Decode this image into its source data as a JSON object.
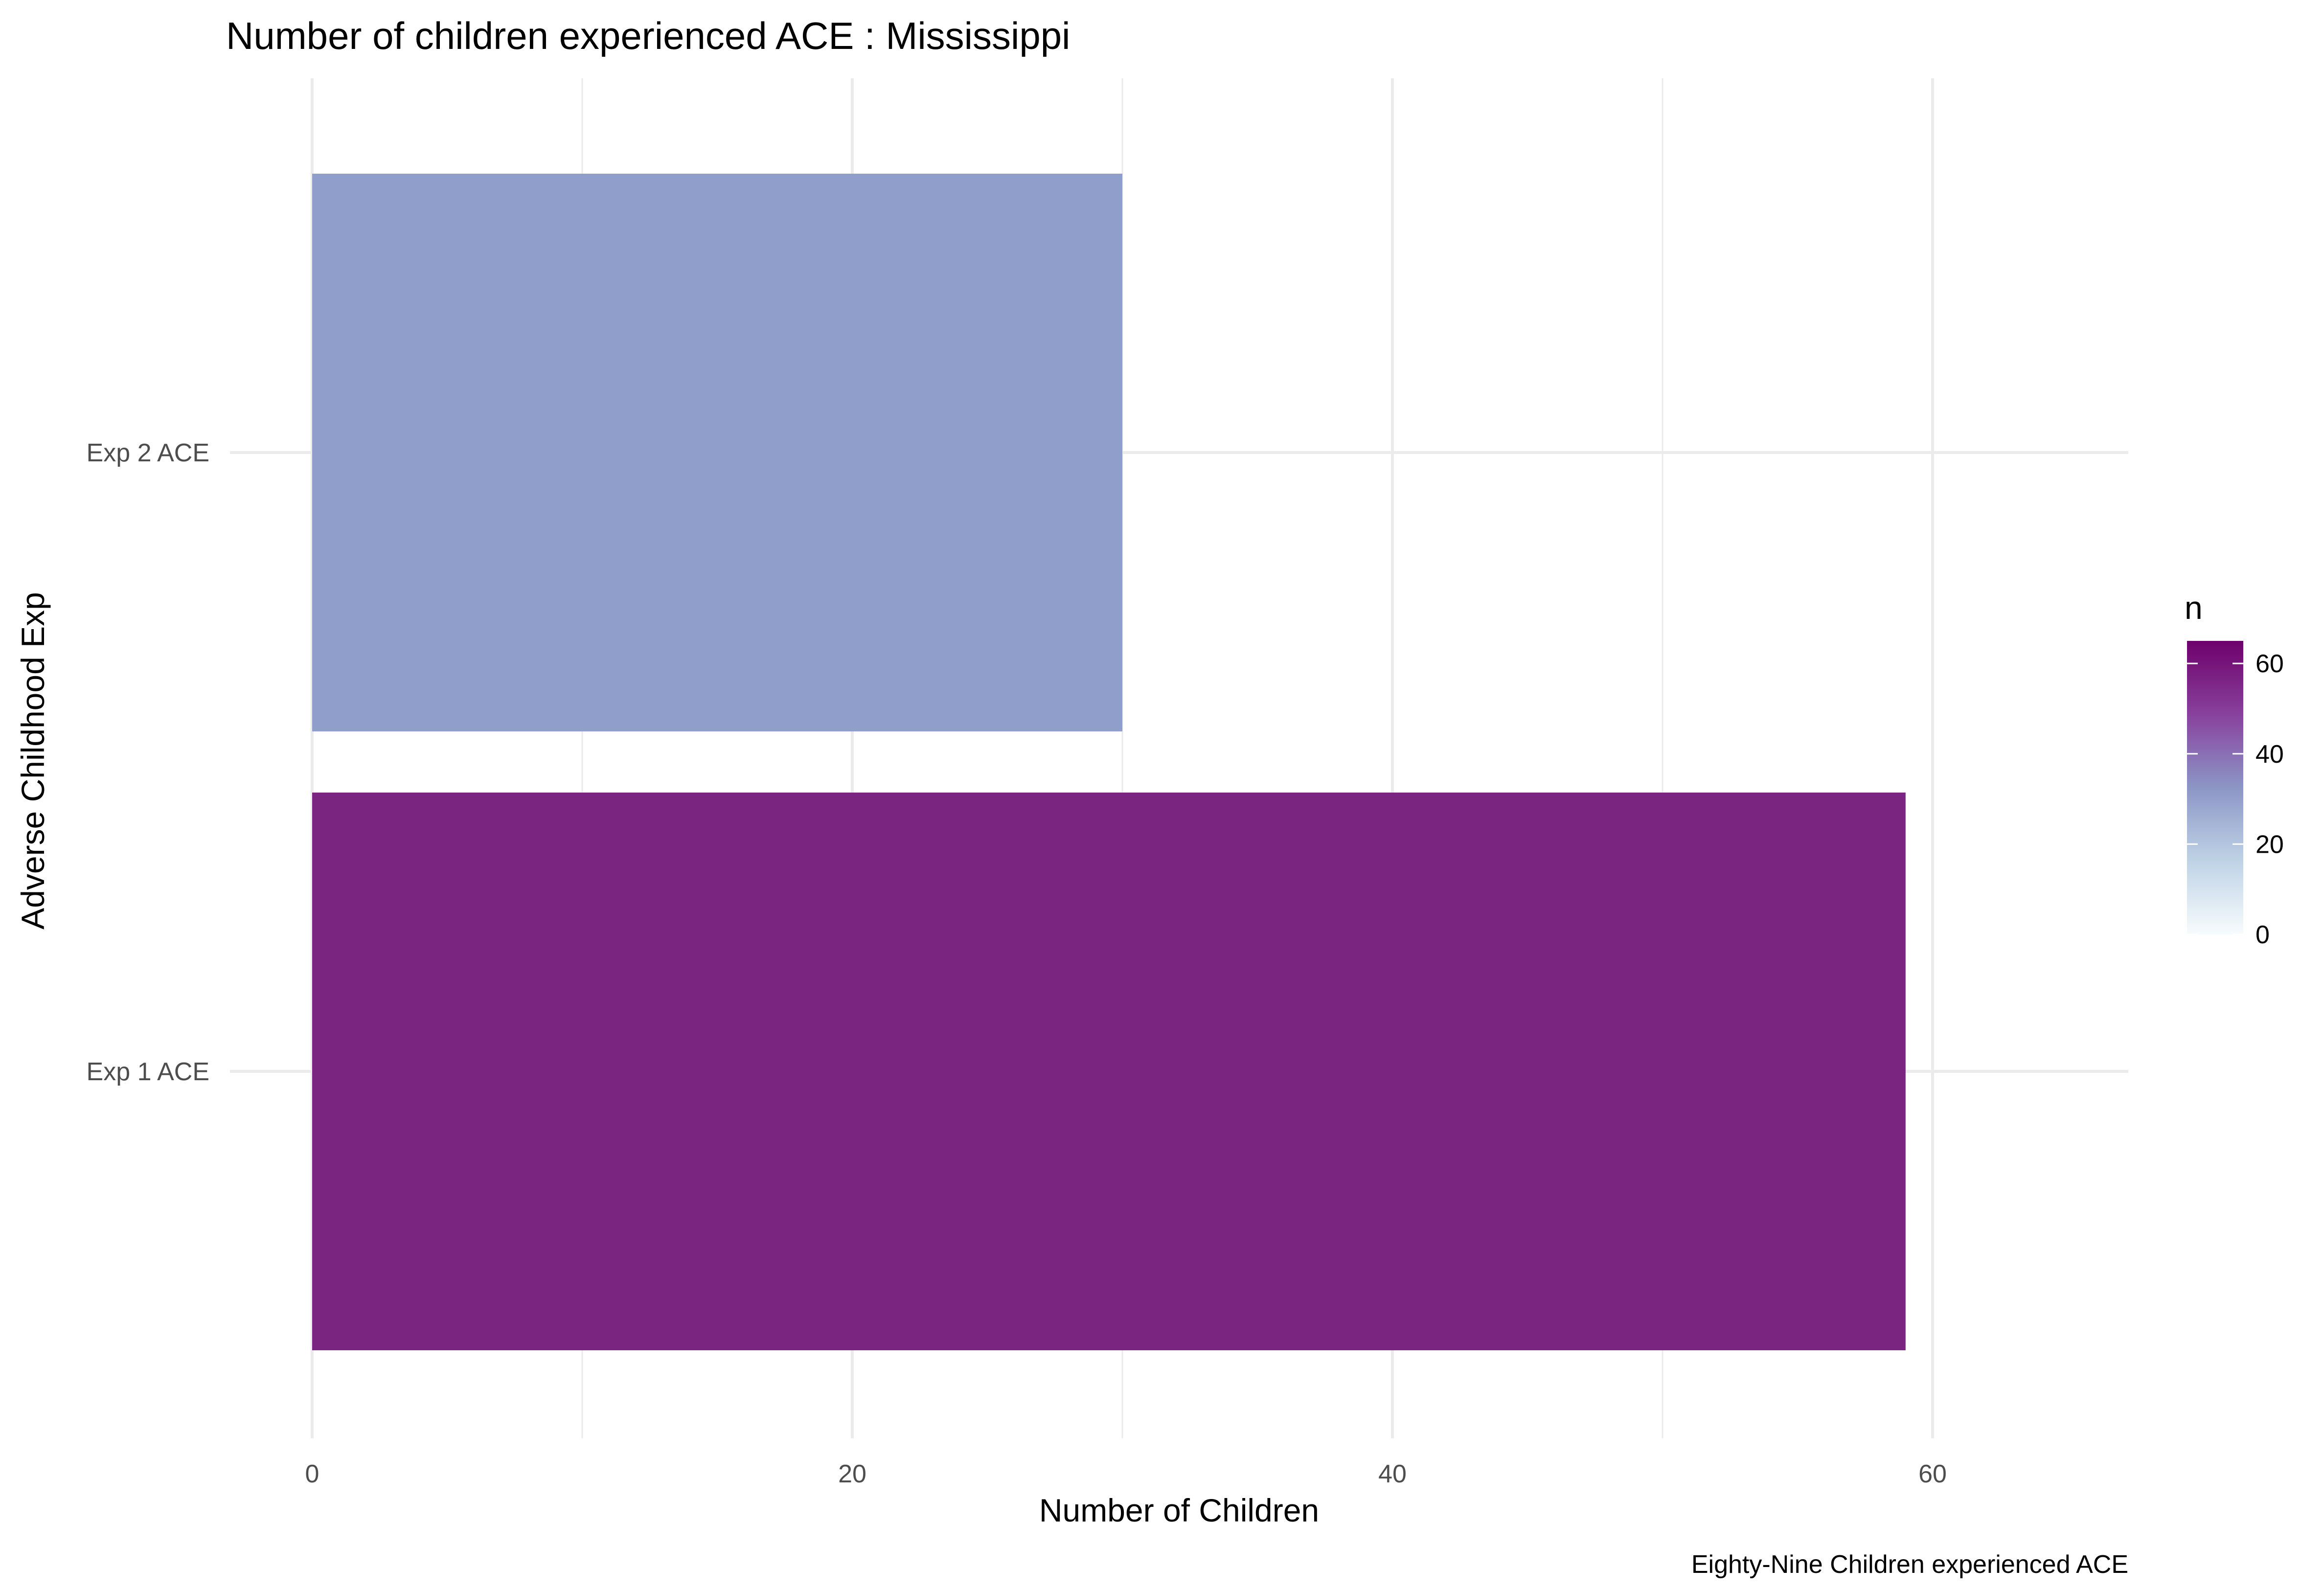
{
  "chart_data": {
    "type": "bar",
    "orientation": "horizontal",
    "title": "Number of children experienced ACE : Mississippi",
    "xlabel": "Number of Children",
    "ylabel": "Adverse Childhood Exp",
    "caption": "Eighty-Nine Children experienced ACE",
    "categories": [
      "Exp 1 ACE",
      "Exp 2 ACE"
    ],
    "values": [
      59,
      30
    ],
    "xlim": [
      0,
      67
    ],
    "xticks": [
      0,
      20,
      40,
      60
    ],
    "grid": true,
    "legend": {
      "title": "n",
      "position": "right",
      "type": "colorbar",
      "ticks": [
        0,
        20,
        40,
        60
      ],
      "range": [
        0,
        65
      ],
      "colors": [
        "#f7fcfd",
        "#bfd3e6",
        "#8c96c6",
        "#88419d",
        "#6e016b"
      ]
    },
    "bar_colors": [
      "#7a2680",
      "#8f9ecb"
    ]
  }
}
